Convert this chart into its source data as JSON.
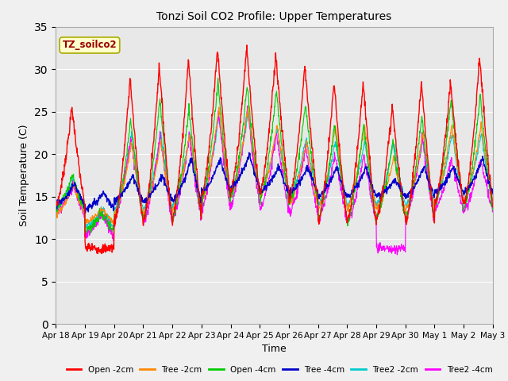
{
  "title": "Tonzi Soil CO2 Profile: Upper Temperatures",
  "xlabel": "Time",
  "ylabel": "Soil Temperature (C)",
  "ylim": [
    0,
    35
  ],
  "yticks": [
    0,
    5,
    10,
    15,
    20,
    25,
    30,
    35
  ],
  "xlim": [
    0,
    15
  ],
  "x_tick_labels": [
    "Apr 18",
    "Apr 19",
    "Apr 20",
    "Apr 21",
    "Apr 22",
    "Apr 23",
    "Apr 24",
    "Apr 25",
    "Apr 26",
    "Apr 27",
    "Apr 28",
    "Apr 29",
    "Apr 30",
    "May 1",
    "May 2",
    "May 3"
  ],
  "legend_label": "TZ_soilco2",
  "series_labels": [
    "Open -2cm",
    "Tree -2cm",
    "Open -4cm",
    "Tree -4cm",
    "Tree2 -2cm",
    "Tree2 -4cm"
  ],
  "series_colors": [
    "#ff0000",
    "#ff8800",
    "#00cc00",
    "#0000cc",
    "#00cccc",
    "#ff00ff"
  ],
  "plot_bg_color": "#e8e8e8",
  "fig_bg_color": "#f0f0f0",
  "figsize": [
    6.4,
    4.8
  ],
  "dpi": 100,
  "red_peaks": [
    25.5,
    8.8,
    29.0,
    30.5,
    31.2,
    32.5,
    32.7,
    31.8,
    30.5,
    28.5,
    28.5,
    25.5,
    28.5,
    28.5,
    31.5
  ],
  "red_mins": [
    14.0,
    9.0,
    12.0,
    12.0,
    12.5,
    15.0,
    15.5,
    15.5,
    14.5,
    12.0,
    12.0,
    12.5,
    12.0,
    14.0,
    14.0
  ],
  "green_peaks": [
    17.5,
    13.0,
    24.0,
    26.5,
    25.5,
    28.5,
    28.0,
    27.5,
    26.0,
    23.5,
    23.5,
    21.5,
    24.5,
    26.5,
    27.0
  ],
  "green_mins": [
    13.5,
    11.0,
    12.5,
    12.5,
    12.5,
    14.5,
    15.0,
    14.5,
    14.0,
    12.5,
    12.0,
    12.5,
    12.5,
    14.0,
    13.5
  ],
  "orange_peaks": [
    16.5,
    13.5,
    21.5,
    21.5,
    22.5,
    25.5,
    25.5,
    23.5,
    21.5,
    23.5,
    23.5,
    19.5,
    22.5,
    23.5,
    23.5
  ],
  "orange_mins": [
    13.0,
    12.0,
    13.0,
    13.0,
    13.5,
    14.5,
    15.0,
    15.0,
    14.0,
    13.5,
    13.5,
    13.5,
    13.5,
    14.5,
    14.5
  ],
  "blue_peaks": [
    16.5,
    15.5,
    17.5,
    17.5,
    19.5,
    19.5,
    20.0,
    18.5,
    18.5,
    18.5,
    18.5,
    17.0,
    18.5,
    18.5,
    19.5
  ],
  "blue_mins": [
    14.0,
    13.5,
    14.5,
    14.5,
    14.5,
    15.5,
    16.0,
    15.5,
    15.5,
    15.0,
    15.0,
    15.0,
    15.0,
    15.5,
    15.5
  ],
  "cyan_peaks": [
    17.0,
    13.5,
    22.5,
    22.5,
    22.5,
    24.5,
    25.0,
    23.0,
    22.0,
    21.5,
    21.5,
    21.5,
    21.5,
    22.5,
    22.5
  ],
  "cyan_mins": [
    13.5,
    11.5,
    13.5,
    13.5,
    14.0,
    15.0,
    15.5,
    15.0,
    14.5,
    14.0,
    14.0,
    14.0,
    14.0,
    14.5,
    14.5
  ],
  "mag_peaks": [
    16.5,
    13.0,
    22.0,
    22.5,
    22.0,
    25.0,
    25.5,
    22.5,
    21.0,
    20.0,
    20.0,
    8.8,
    22.0,
    19.5,
    19.5
  ],
  "mag_mins": [
    13.0,
    10.5,
    12.5,
    12.0,
    12.5,
    13.5,
    14.0,
    13.5,
    13.0,
    12.5,
    12.0,
    9.0,
    12.5,
    13.5,
    13.5
  ]
}
